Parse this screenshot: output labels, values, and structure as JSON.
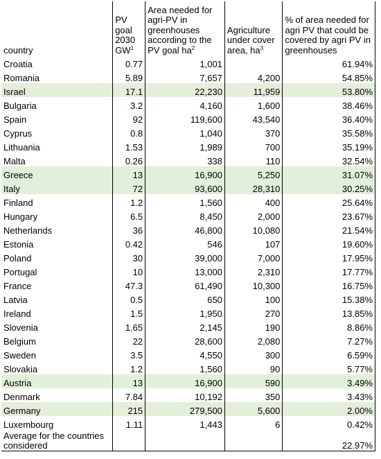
{
  "headers": {
    "country": "country",
    "pv_goal": "PV goal 2030 GW",
    "pv_goal_sup": "1",
    "area_needed": "Area needed for agri-PV in greenhouses according to the PV goal ha",
    "area_needed_sup": "2",
    "agri_cover": "Agriculture under cover area, ha",
    "agri_cover_sup": "3",
    "pct": "% of area needed for agri PV that could be covered by agri PV in greenhouses"
  },
  "rows": [
    {
      "country": "Croatia",
      "pv": "0.77",
      "area": "1,001",
      "cover": "",
      "pct": "61.94%",
      "hl": false
    },
    {
      "country": "Romania",
      "pv": "5.89",
      "area": "7,657",
      "cover": "4,200",
      "pct": "54.85%",
      "hl": false
    },
    {
      "country": "Israel",
      "pv": "17.1",
      "area": "22,230",
      "cover": "11,959",
      "pct": "53.80%",
      "hl": true
    },
    {
      "country": "Bulgaria",
      "pv": "3.2",
      "area": "4,160",
      "cover": "1,600",
      "pct": "38.46%",
      "hl": false
    },
    {
      "country": "Spain",
      "pv": "92",
      "area": "119,600",
      "cover": "43,540",
      "pct": "36.40%",
      "hl": false
    },
    {
      "country": "Cyprus",
      "pv": "0.8",
      "area": "1,040",
      "cover": "370",
      "pct": "35.58%",
      "hl": false
    },
    {
      "country": "Lithuania",
      "pv": "1.53",
      "area": "1,989",
      "cover": "700",
      "pct": "35.19%",
      "hl": false
    },
    {
      "country": "Malta",
      "pv": "0.26",
      "area": "338",
      "cover": "110",
      "pct": "32.54%",
      "hl": false
    },
    {
      "country": "Greece",
      "pv": "13",
      "area": "16,900",
      "cover": "5,250",
      "pct": "31.07%",
      "hl": true
    },
    {
      "country": "Italy",
      "pv": "72",
      "area": "93,600",
      "cover": "28,310",
      "pct": "30.25%",
      "hl": true
    },
    {
      "country": "Finland",
      "pv": "1.2",
      "area": "1,560",
      "cover": "400",
      "pct": "25.64%",
      "hl": false
    },
    {
      "country": "Hungary",
      "pv": "6.5",
      "area": "8,450",
      "cover": "2,000",
      "pct": "23.67%",
      "hl": false
    },
    {
      "country": "Netherlands",
      "pv": "36",
      "area": "46,800",
      "cover": "10,080",
      "pct": "21.54%",
      "hl": false
    },
    {
      "country": "Estonia",
      "pv": "0.42",
      "area": "546",
      "cover": "107",
      "pct": "19.60%",
      "hl": false
    },
    {
      "country": "Poland",
      "pv": "30",
      "area": "39,000",
      "cover": "7,000",
      "pct": "17.95%",
      "hl": false
    },
    {
      "country": "Portugal",
      "pv": "10",
      "area": "13,000",
      "cover": "2,310",
      "pct": "17.77%",
      "hl": false
    },
    {
      "country": "France",
      "pv": "47.3",
      "area": "61,490",
      "cover": "10,300",
      "pct": "16.75%",
      "hl": false
    },
    {
      "country": "Latvia",
      "pv": "0.5",
      "area": "650",
      "cover": "100",
      "pct": "15.38%",
      "hl": false
    },
    {
      "country": "Ireland",
      "pv": "1.5",
      "area": "1,950",
      "cover": "270",
      "pct": "13.85%",
      "hl": false
    },
    {
      "country": "Slovenia",
      "pv": "1.65",
      "area": "2,145",
      "cover": "190",
      "pct": "8.86%",
      "hl": false
    },
    {
      "country": "Belgium",
      "pv": "22",
      "area": "28,600",
      "cover": "2,080",
      "pct": "7.27%",
      "hl": false
    },
    {
      "country": "Sweden",
      "pv": "3.5",
      "area": "4,550",
      "cover": "300",
      "pct": "6.59%",
      "hl": false
    },
    {
      "country": "Slovakia",
      "pv": "1.2",
      "area": "1,560",
      "cover": "90",
      "pct": "5.77%",
      "hl": false
    },
    {
      "country": "Austria",
      "pv": "13",
      "area": "16,900",
      "cover": "590",
      "pct": "3.49%",
      "hl": true
    },
    {
      "country": "Denmark",
      "pv": "7.84",
      "area": "10,192",
      "cover": "350",
      "pct": "3.43%",
      "hl": false
    },
    {
      "country": "Germany",
      "pv": "215",
      "area": "279,500",
      "cover": "5,600",
      "pct": "2.00%",
      "hl": true
    },
    {
      "country": "Luxembourg",
      "pv": "1.11",
      "area": "1,443",
      "cover": "6",
      "pct": "0.42%",
      "hl": false
    }
  ],
  "average": {
    "label": "Average for the countries considered",
    "pct": "22.97%"
  },
  "colors": {
    "highlight": "#e2efda",
    "border": "#000000"
  }
}
